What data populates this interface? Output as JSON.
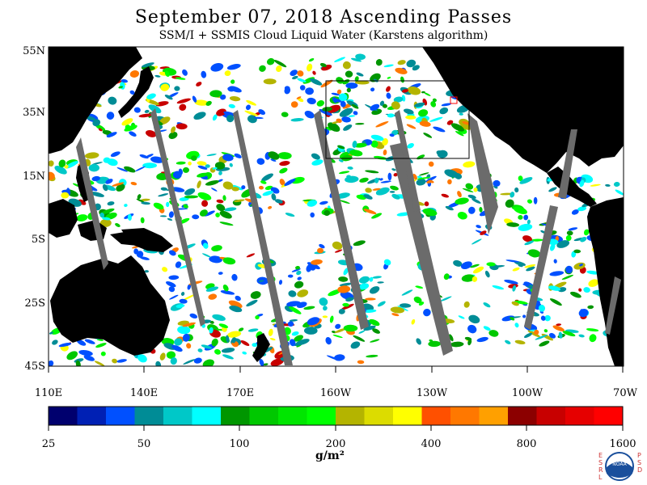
{
  "header": {
    "title": "September 07, 2018  Ascending Passes",
    "subtitle": "SSM/I + SSMIS Cloud Liquid Water (Karstens algorithm)"
  },
  "map": {
    "lat_labels": [
      "55N",
      "35N",
      "15N",
      "5S",
      "25S",
      "45S"
    ],
    "lon_labels": [
      "110E",
      "140E",
      "170E",
      "160W",
      "130W",
      "100W",
      "70W"
    ],
    "colors": {
      "land": "#000000",
      "ocean": "#ffffff",
      "swath_gap": "#6b6b6b",
      "inset_box": "#000000",
      "marker": "#ff0000"
    }
  },
  "colorbar": {
    "ticks": [
      "25",
      "50",
      "100",
      "200",
      "400",
      "800",
      "1600"
    ],
    "unit": "g/m²",
    "colors": [
      "#00006e",
      "#0020b4",
      "#0050ff",
      "#008c96",
      "#00c8c8",
      "#00ffff",
      "#009600",
      "#00c800",
      "#00e600",
      "#00ff00",
      "#b4b400",
      "#dcdc00",
      "#ffff00",
      "#ff5000",
      "#ff7800",
      "#ffa000",
      "#8c0000",
      "#c80000",
      "#e60000",
      "#ff0000"
    ]
  },
  "logo": {
    "left_letters": "ESRL",
    "right_letters": "PSD",
    "center_text": "NOAA"
  }
}
